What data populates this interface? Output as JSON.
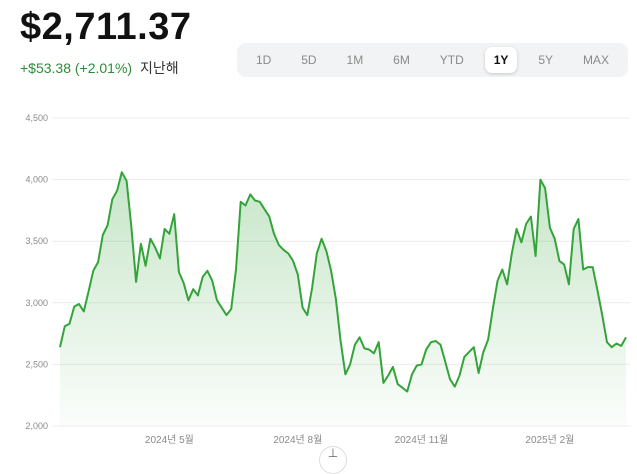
{
  "header": {
    "price": "$2,711.37",
    "change": "+$53.38 (+2.01%)",
    "period": "지난해"
  },
  "ranges": [
    "1D",
    "5D",
    "1M",
    "6M",
    "YTD",
    "1Y",
    "5Y",
    "MAX"
  ],
  "active_range": "1Y",
  "colors": {
    "line": "#34a43a",
    "positive": "#2e8b3a",
    "fill_top": "#34a43a"
  },
  "chart_data": {
    "type": "area",
    "ylim": [
      2000,
      4500
    ],
    "yticks": [
      2000,
      2500,
      3000,
      3500,
      4000,
      4500
    ],
    "ytick_labels": [
      "2,000",
      "2,500",
      "3,000",
      "3,500",
      "4,000",
      "4,500"
    ],
    "xtick_labels": [
      "2024년 5월",
      "2024년 8월",
      "2024년 11월",
      "2025년 2월"
    ],
    "xtick_index": [
      23,
      50,
      76,
      103
    ],
    "series": [
      {
        "values": [
          2640,
          2810,
          2830,
          2970,
          2990,
          2930,
          3090,
          3260,
          3330,
          3550,
          3630,
          3840,
          3910,
          4060,
          3990,
          3620,
          3170,
          3480,
          3300,
          3520,
          3450,
          3360,
          3600,
          3560,
          3720,
          3250,
          3160,
          3020,
          3110,
          3060,
          3210,
          3260,
          3180,
          3020,
          2960,
          2900,
          2950,
          3270,
          3820,
          3790,
          3880,
          3830,
          3820,
          3760,
          3700,
          3560,
          3470,
          3430,
          3400,
          3340,
          3230,
          2960,
          2900,
          3120,
          3400,
          3520,
          3420,
          3260,
          3030,
          2690,
          2420,
          2500,
          2660,
          2720,
          2630,
          2620,
          2590,
          2680,
          2350,
          2410,
          2480,
          2340,
          2310,
          2280,
          2420,
          2490,
          2500,
          2620,
          2680,
          2690,
          2660,
          2520,
          2380,
          2320,
          2410,
          2560,
          2600,
          2640,
          2430,
          2600,
          2700,
          2950,
          3180,
          3270,
          3150,
          3400,
          3600,
          3490,
          3640,
          3700,
          3380,
          4000,
          3930,
          3610,
          3520,
          3340,
          3310,
          3150,
          3600,
          3680,
          3270,
          3290,
          3290,
          3100,
          2900,
          2680,
          2640,
          2670,
          2650,
          2720
        ]
      }
    ]
  }
}
